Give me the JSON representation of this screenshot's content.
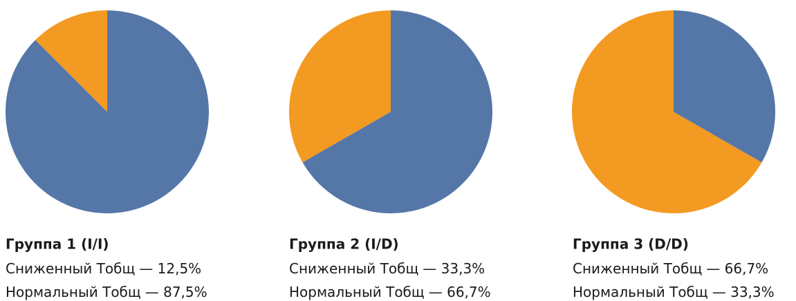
{
  "chart_data": [
    {
      "type": "pie",
      "title": "Группа 1 (I/I)",
      "categories": [
        "Сниженный Тобщ",
        "Нормальный Тобщ"
      ],
      "values": [
        12.5,
        87.5
      ],
      "value_labels": [
        "— 12,5%",
        "— 87,5%"
      ],
      "colors": [
        "#f39a22",
        "#5577a8"
      ]
    },
    {
      "type": "pie",
      "title": "Группа 2 (I/D)",
      "categories": [
        "Сниженный Тобщ",
        "Нормальный Тобщ"
      ],
      "values": [
        33.3,
        66.7
      ],
      "value_labels": [
        "— 33,3%",
        "— 66,7%"
      ],
      "colors": [
        "#f39a22",
        "#5577a8"
      ]
    },
    {
      "type": "pie",
      "title": "Группа 3 (D/D)",
      "categories": [
        "Сниженный Тобщ",
        "Нормальный Тобщ"
      ],
      "values": [
        66.7,
        33.3
      ],
      "value_labels": [
        "— 66,7%",
        "— 33,3%"
      ],
      "colors": [
        "#f39a22",
        "#5577a8"
      ]
    }
  ]
}
